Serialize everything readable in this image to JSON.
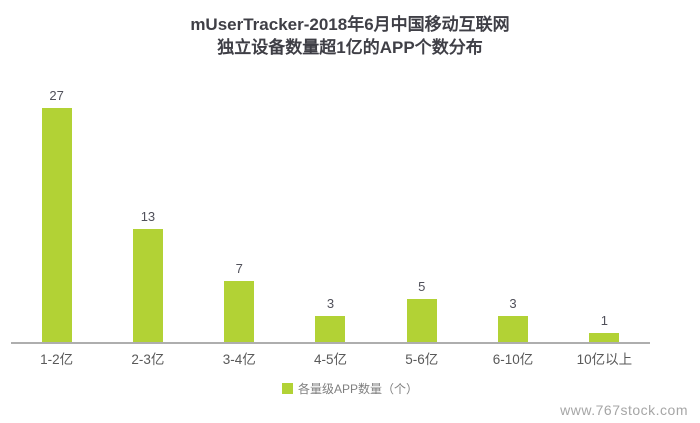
{
  "title": {
    "line1": "mUserTracker-2018年6月中国移动互联网",
    "line2": "独立设备数量超1亿的APP个数分布"
  },
  "legend": {
    "label": "各量级APP数量（个）"
  },
  "watermark": "www.767stock.com",
  "colors": {
    "bar": "#b2d235",
    "title_text": "#3f3f46",
    "value_label": "#50505a",
    "category_label": "#595959",
    "axis_line": "#aeaeae",
    "legend_text": "#7f7f7f",
    "watermark_text": "#a6a6a6"
  },
  "chart_data": {
    "type": "bar",
    "categories": [
      "1-2亿",
      "2-3亿",
      "3-4亿",
      "4-5亿",
      "5-6亿",
      "6-10亿",
      "10亿以上"
    ],
    "values": [
      27,
      13,
      7,
      3,
      5,
      3,
      1
    ],
    "title": "mUserTracker-2018年6月中国移动互联网 独立设备数量超1亿的APP个数分布",
    "xlabel": "",
    "ylabel": "",
    "ylim": [
      0,
      28
    ],
    "grid": false,
    "data_labels": true,
    "legend_entries": [
      "各量级APP数量（个）"
    ],
    "legend_position": "bottom",
    "bar_color": "#b2d235"
  }
}
